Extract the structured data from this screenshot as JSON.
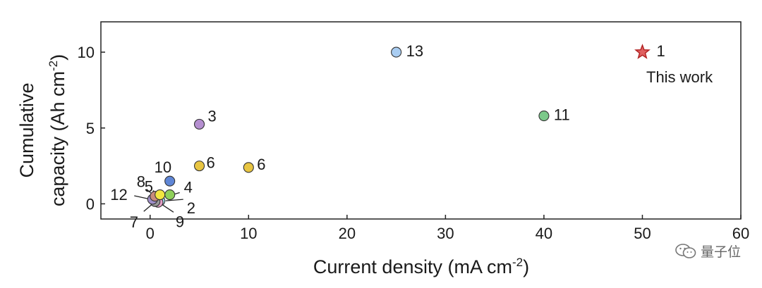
{
  "chart_data": {
    "type": "scatter",
    "title": "",
    "xlabel": "Current density (mA cm",
    "xlabel_sup": "-2",
    "xlabel_end": ")",
    "ylabel_line1": "Cumulative",
    "ylabel_line2": "capacity (Ah cm",
    "ylabel_sup": "-2",
    "ylabel_end": ")",
    "xlim": [
      -5,
      60
    ],
    "ylim": [
      -1,
      12
    ],
    "xticks": [
      0,
      10,
      20,
      30,
      40,
      50,
      60
    ],
    "yticks": [
      0,
      5,
      10
    ],
    "grid": false,
    "points": [
      {
        "label": "1",
        "x": 50,
        "y": 10,
        "color": "#e06060",
        "marker": "star"
      },
      {
        "label": "13",
        "x": 25,
        "y": 10,
        "color": "#a9cdf2",
        "marker": "circle"
      },
      {
        "label": "11",
        "x": 40,
        "y": 5.8,
        "color": "#7cc98a",
        "marker": "circle"
      },
      {
        "label": "3",
        "x": 5,
        "y": 5.25,
        "color": "#b58fd0",
        "marker": "circle"
      },
      {
        "label": "6",
        "x": 5,
        "y": 2.5,
        "color": "#e8c542",
        "marker": "circle"
      },
      {
        "label": "6",
        "x": 10,
        "y": 2.4,
        "color": "#e8c542",
        "marker": "circle"
      },
      {
        "label": "10",
        "x": 2,
        "y": 1.5,
        "color": "#5f86d6",
        "marker": "circle"
      },
      {
        "label": "4",
        "x": 2,
        "y": 0.6,
        "color": "#8fd05a",
        "marker": "circle"
      },
      {
        "label": "5",
        "x": 1,
        "y": 0.6,
        "color": "#f2e640",
        "marker": "circle"
      },
      {
        "label": "8",
        "x": 0.5,
        "y": 0.5,
        "color": "#c78a7c",
        "marker": "circle"
      },
      {
        "label": "12",
        "x": 0.25,
        "y": 0.3,
        "color": "#a08fc9",
        "marker": "circle"
      },
      {
        "label": "7",
        "x": 0.5,
        "y": 0.15,
        "color": "#9a9a9a",
        "marker": "circle"
      },
      {
        "label": "9",
        "x": 0.8,
        "y": 0.1,
        "color": "#e6a0c8",
        "marker": "circle"
      },
      {
        "label": "2",
        "x": 1,
        "y": 0.2,
        "color": "#9fd8ea",
        "marker": "circle"
      }
    ],
    "annotations": [
      {
        "text": "This work",
        "refers_to": "1"
      }
    ]
  },
  "watermark": {
    "text": "量子位",
    "icon": "wechat-icon"
  }
}
